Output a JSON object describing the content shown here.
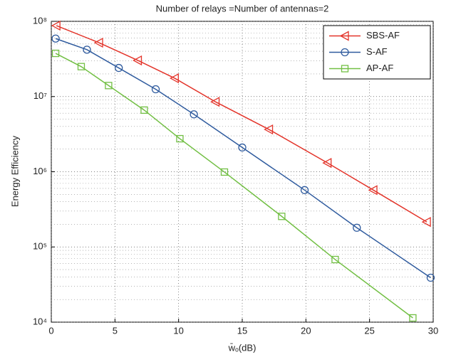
{
  "chart_data": {
    "type": "line",
    "title": "Number of relays =Number of antennas=2",
    "x_label": "w̄ₒ(dB)",
    "y_label": "Energy Efficiency",
    "yscale": "log",
    "xlim": [
      0,
      30
    ],
    "xticks": [
      0,
      5,
      10,
      15,
      20,
      25,
      30
    ],
    "ylim": [
      10000,
      100000000
    ],
    "yticks": [
      {
        "value": 10000,
        "label": "10⁴"
      },
      {
        "value": 100000,
        "label": "10⁵"
      },
      {
        "value": 1000000,
        "label": "10⁶"
      },
      {
        "value": 10000000,
        "label": "10⁷"
      },
      {
        "value": 100000000,
        "label": "10⁸"
      }
    ],
    "grid": true,
    "minor_grid": true,
    "legend": "upper right",
    "series": [
      {
        "name": "SBS-AF",
        "color": "#e3342a",
        "marker": "triangle-left",
        "x": [
          0.4,
          3.75,
          6.8,
          9.7,
          12.9,
          17.1,
          21.7,
          25.3,
          29.5
        ],
        "values": [
          87700000,
          52000000,
          30200000,
          17500000,
          8500000,
          3650000,
          1310000,
          570000,
          215000
        ]
      },
      {
        "name": "S-AF",
        "color": "#2f5b9e",
        "marker": "circle",
        "x": [
          0.34,
          2.8,
          5.3,
          8.2,
          11.2,
          15.0,
          19.9,
          24.0,
          29.8
        ],
        "values": [
          59000000,
          42000000,
          24000000,
          12500000,
          5800000,
          2100000,
          570000,
          180000,
          39000
        ]
      },
      {
        "name": "AP-AF",
        "color": "#72bf44",
        "marker": "square",
        "x": [
          0.34,
          2.35,
          4.5,
          7.3,
          10.1,
          13.6,
          18.1,
          22.3,
          28.4
        ],
        "values": [
          37500000,
          25000000,
          14000000,
          6600000,
          2750000,
          990000,
          255000,
          68000,
          11400
        ]
      }
    ]
  }
}
